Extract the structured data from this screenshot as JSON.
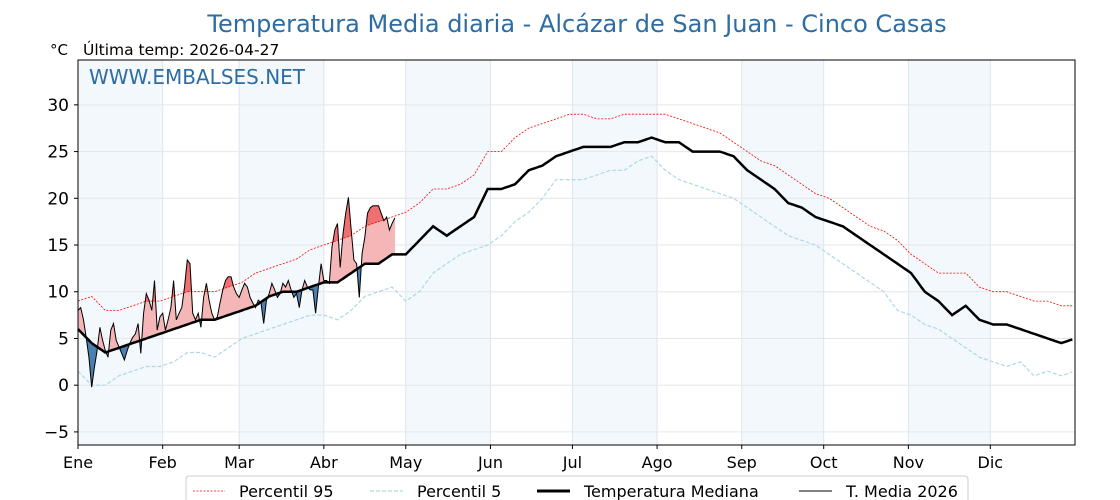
{
  "chart_data": {
    "type": "line",
    "title": "Temperatura Media diaria - Alcázar de San Juan - Cinco Casas",
    "ylabel": "°C",
    "subtitle": "Última temp: 2026-04-27",
    "watermark": "WWW.EMBALSES.NET",
    "ylim": [
      -6.4,
      34.8
    ],
    "xlim_days": [
      0,
      365
    ],
    "yticks": [
      -5,
      0,
      5,
      10,
      15,
      20,
      25,
      30
    ],
    "month_labels": [
      "Ene",
      "Feb",
      "Mar",
      "Abr",
      "May",
      "Jun",
      "Jul",
      "Ago",
      "Sep",
      "Oct",
      "Nov",
      "Dic"
    ],
    "month_start_days": [
      0,
      31,
      59,
      90,
      120,
      151,
      181,
      212,
      243,
      273,
      304,
      334
    ],
    "grid": true,
    "legend_position": "bottom-center",
    "legend": [
      "Percentil 95",
      "Percentil 5",
      "Temperatura Mediana",
      "T. Media 2026"
    ],
    "sample_step_days": 5,
    "series": [
      {
        "name": "Percentil 95",
        "color": "#ff0000",
        "values": [
          9,
          9.5,
          8,
          8,
          8.5,
          9,
          9,
          9.5,
          10,
          10,
          10,
          10.5,
          11,
          12,
          12.5,
          13,
          13.5,
          14.5,
          15,
          15.5,
          16,
          17,
          17.5,
          18,
          18.5,
          19.5,
          21,
          21,
          21.5,
          22.5,
          25,
          25,
          26.5,
          27.5,
          28,
          28.5,
          29,
          29,
          28.5,
          28.5,
          29,
          29,
          29,
          29,
          28.5,
          28,
          27.5,
          27,
          26,
          25,
          24,
          23.5,
          22.5,
          21.5,
          20.5,
          20,
          19,
          18,
          17,
          16.5,
          15.5,
          14,
          13,
          12,
          12,
          12,
          10.5,
          10,
          10,
          9.5,
          9,
          9,
          8.5,
          8.5
        ]
      },
      {
        "name": "Percentil 5",
        "color": "#add8e6",
        "values": [
          1.5,
          0,
          0,
          1,
          1.5,
          2,
          2,
          2.5,
          3.5,
          3.5,
          3,
          4,
          5,
          5.5,
          6,
          6.5,
          7,
          7.5,
          7.5,
          7,
          8,
          9.5,
          10,
          10.5,
          9,
          10,
          12,
          13,
          14,
          14.5,
          15,
          16,
          17.5,
          18.5,
          20,
          22,
          22,
          22,
          22.5,
          23,
          23,
          24,
          24.5,
          23,
          22,
          21.5,
          21,
          20.5,
          20,
          19,
          18,
          17,
          16,
          15.5,
          15,
          14,
          13,
          12,
          11,
          10,
          8,
          7.5,
          6.5,
          6,
          5,
          4,
          3,
          2.5,
          2,
          2.5,
          1,
          1.5,
          1,
          1.5
        ]
      },
      {
        "name": "Temperatura Mediana",
        "color": "#000000",
        "values": [
          6,
          4.5,
          3.5,
          4,
          4.5,
          5,
          5.5,
          6,
          6.5,
          7,
          7,
          7.5,
          8,
          8.5,
          9.5,
          10,
          10,
          10.5,
          11,
          11,
          12,
          13,
          13,
          14,
          14,
          15.5,
          17,
          16,
          17,
          18,
          21,
          21,
          21.5,
          23,
          23.5,
          24.5,
          25,
          25.5,
          25.5,
          25.5,
          26,
          26,
          26.5,
          26,
          26,
          25,
          25,
          25,
          24.5,
          23,
          22,
          21,
          19.5,
          19,
          18,
          17.5,
          17,
          16,
          15,
          14,
          13,
          12,
          10,
          9,
          7.5,
          8.5,
          7,
          6.5,
          6.5,
          6,
          5.5,
          5,
          4.5,
          5
        ]
      },
      {
        "name": "T. Media 2026",
        "color": "#000000",
        "step_days": 1,
        "values": [
          8,
          8.3,
          7,
          5.1,
          3,
          -0.2,
          1.9,
          3.7,
          6.2,
          4.8,
          3.7,
          3,
          5.9,
          6.6,
          4.8,
          4.1,
          3.4,
          2.7,
          3.7,
          4.5,
          5.1,
          5.5,
          6.6,
          3.4,
          7.7,
          9.8,
          9.1,
          8,
          11.2,
          5.9,
          7.3,
          7.7,
          5.9,
          7,
          8.3,
          11.2,
          7,
          7.7,
          8.3,
          10.5,
          13.4,
          13,
          7.7,
          7,
          7.7,
          6.2,
          9.4,
          10.9,
          9.1,
          7.7,
          7,
          7.3,
          8.8,
          10.2,
          11.2,
          11.6,
          11.6,
          10.5,
          9.8,
          9.4,
          10.2,
          10.9,
          10.5,
          9.4,
          8.8,
          8.3,
          9.1,
          8.8,
          6.6,
          9.1,
          9.8,
          10.9,
          10.2,
          9.4,
          9.8,
          10.9,
          10.5,
          11.2,
          10.2,
          9.4,
          9.8,
          8.3,
          10.2,
          11.2,
          10.5,
          10.2,
          10.2,
          7.7,
          10.5,
          13,
          11.2,
          11.2,
          10.9,
          14.8,
          16.6,
          17.3,
          12.6,
          16.2,
          18.4,
          20.1,
          16.6,
          13.4,
          13,
          9.4,
          14.1,
          15.8,
          18.4,
          19,
          19.2,
          19.2,
          19.2,
          18.4,
          17.6,
          18,
          16.6,
          17.3,
          17.9
        ]
      }
    ],
    "colors": {
      "title": "#2d6da3",
      "above": "#f4b6b6",
      "above_p95": "#ee7070",
      "below": "#4a7fb0",
      "below_p5": "#2b5d8c",
      "month_shade": "#f3f8fc"
    }
  }
}
